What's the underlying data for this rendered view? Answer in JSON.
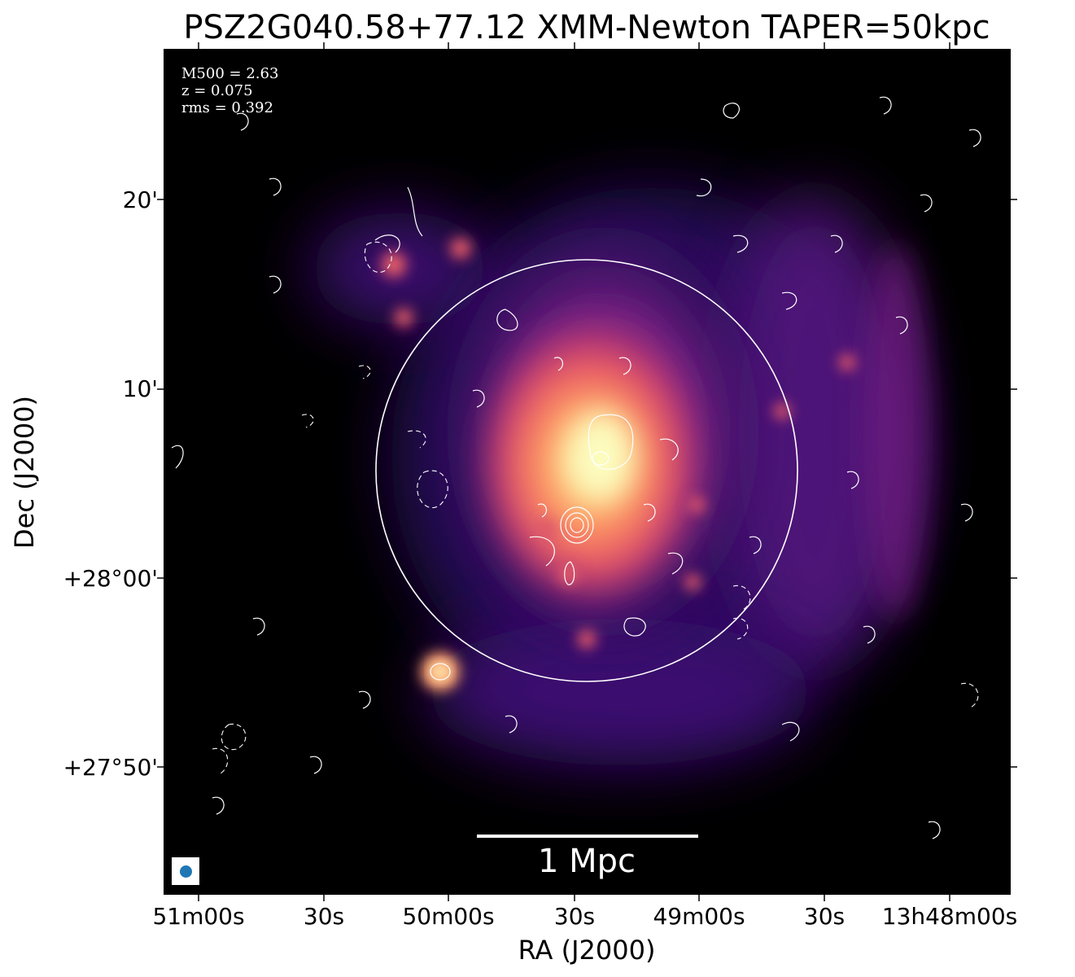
{
  "title": "PSZ2G040.58+77.12 XMM-Newton TAPER=50kpc",
  "info": {
    "m500": "M500 = 2.63",
    "z": "z = 0.075",
    "rms": "rms = 0.392"
  },
  "axes": {
    "xlabel": "RA (J2000)",
    "ylabel": "Dec (J2000)",
    "xticks": [
      "51m00s",
      "30s",
      "50m00s",
      "30s",
      "49m00s",
      "30s",
      "13h48m00s"
    ],
    "yticks": [
      "20'",
      "10'",
      "+28°00'",
      "+27°50'"
    ]
  },
  "scalebar": {
    "label": "1 Mpc"
  },
  "colors": {
    "background": "#000000",
    "contour": "#ffffff",
    "beam": "#1f77b4",
    "colormap": [
      "#000004",
      "#3b0f70",
      "#8c2981",
      "#de4968",
      "#fe9f6d",
      "#fcfdbf"
    ]
  }
}
